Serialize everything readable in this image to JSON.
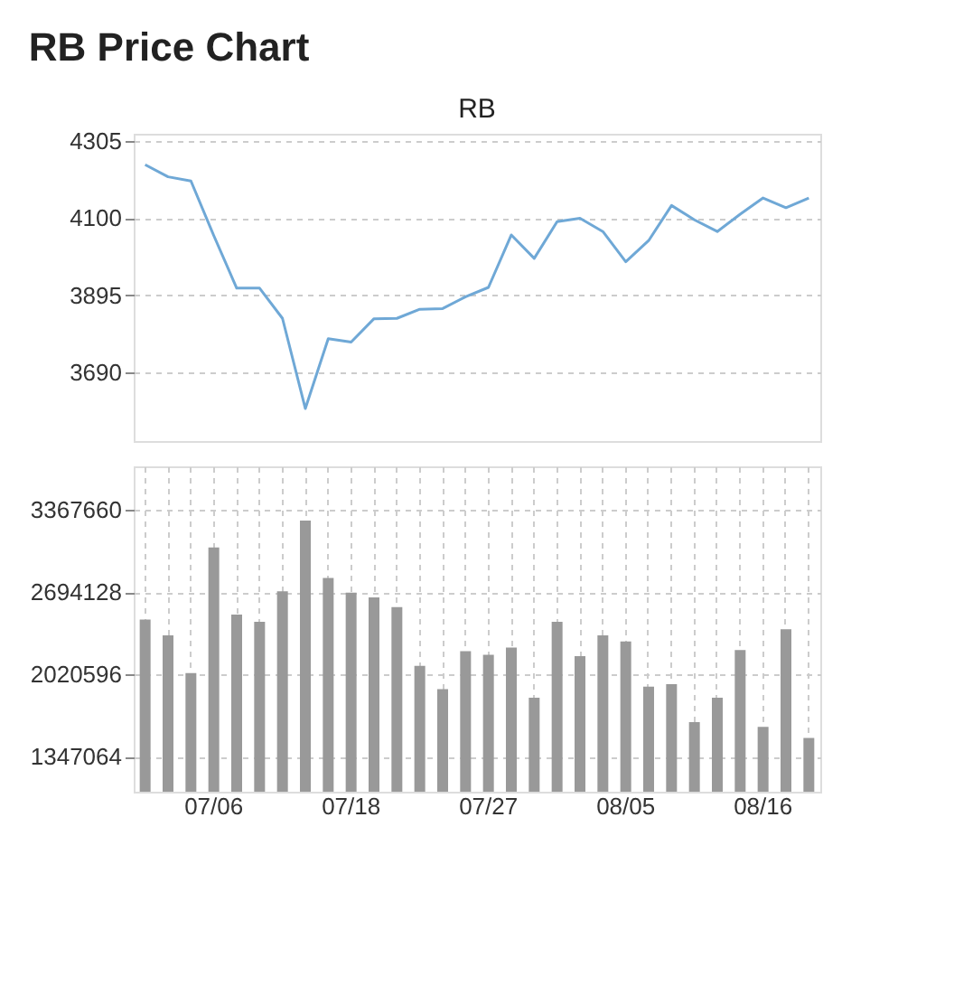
{
  "chart_data": [
    {
      "type": "line",
      "title": "RB Price Chart",
      "subtitle": "RB",
      "series": [
        {
          "color": "#6fa8d6",
          "values": [
            4241,
            4209,
            4198,
            4053,
            3914,
            3914,
            3834,
            3595,
            3780,
            3771,
            3833,
            3834,
            3858,
            3860,
            3891,
            3916,
            4055,
            3993,
            4090,
            4099,
            4064,
            3984,
            4040,
            4133,
            4095,
            4064,
            4110,
            4153,
            4127,
            4153
          ]
        }
      ],
      "ylim": [
        3509,
        4323
      ],
      "yticks": [
        3690,
        3895,
        4100,
        4305
      ],
      "grid": "y",
      "tick_labels": "y"
    },
    {
      "type": "bar",
      "categories": [
        null,
        null,
        null,
        "07/06",
        null,
        null,
        null,
        null,
        null,
        "07/18",
        null,
        null,
        null,
        null,
        null,
        "07/27",
        null,
        null,
        null,
        null,
        null,
        "08/05",
        null,
        null,
        null,
        null,
        null,
        "08/16",
        null,
        null
      ],
      "series": [
        {
          "color": "#999999",
          "values": [
            2470000,
            2340000,
            2030000,
            3060000,
            2510000,
            2450000,
            2700000,
            3280000,
            2810000,
            2690000,
            2650000,
            2570000,
            2090000,
            1900000,
            2210000,
            2180000,
            2240000,
            1830000,
            2450000,
            2170000,
            2340000,
            2290000,
            1920000,
            1940000,
            1630000,
            1830000,
            2220000,
            1590000,
            2390000,
            1500000
          ]
        }
      ],
      "ylim": [
        1060000,
        3723000
      ],
      "yticks": [
        1347064,
        2020596,
        2694128,
        3367660
      ],
      "grid": true
    }
  ]
}
